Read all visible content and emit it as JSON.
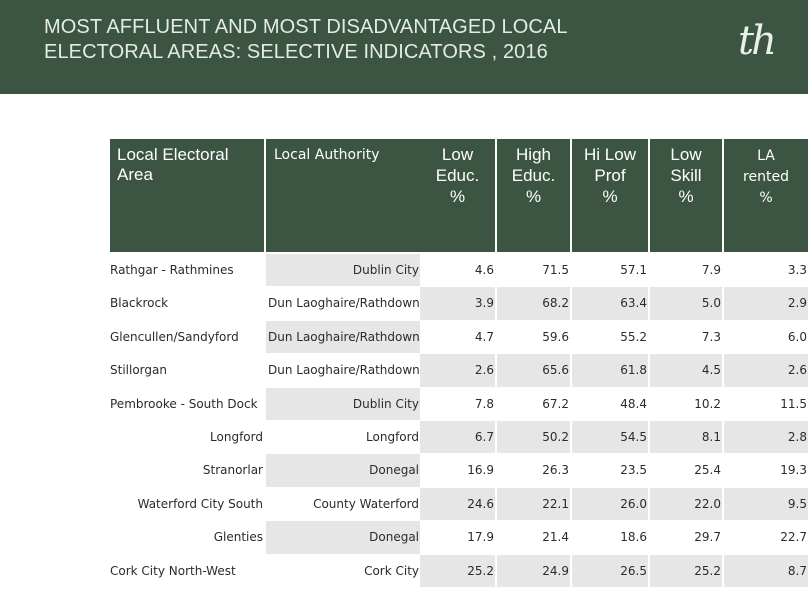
{
  "header": {
    "title_line1": "MOST AFFLUENT AND MOST DISADVANTAGED LOCAL",
    "title_line2": "ELECTORAL AREAS: SELECTIVE INDICATORS , 2016",
    "logo": "th"
  },
  "table": {
    "columns": [
      "Local Electoral\nArea",
      "Local Authority",
      "Low\nEduc.\n%",
      "High\nEduc.\n%",
      "Hi Low\nProf\n%",
      "Low\nSkill\n%",
      "LA\nrented\n%"
    ],
    "rows": [
      {
        "area": "Rathgar - Rathmines",
        "authority": "Dublin City",
        "values": [
          "4.6",
          "71.5",
          "57.1",
          "7.9",
          "3.3"
        ]
      },
      {
        "area": "Blackrock",
        "authority": "Dun Laoghaire/Rathdown",
        "values": [
          "3.9",
          "68.2",
          "63.4",
          "5.0",
          "2.9"
        ]
      },
      {
        "area": "Glencullen/Sandyford",
        "authority": "Dun Laoghaire/Rathdown",
        "values": [
          "4.7",
          "59.6",
          "55.2",
          "7.3",
          "6.0"
        ]
      },
      {
        "area": "Stillorgan",
        "authority": "Dun Laoghaire/Rathdown",
        "values": [
          "2.6",
          "65.6",
          "61.8",
          "4.5",
          "2.6"
        ]
      },
      {
        "area": "Pembrooke - South Dock",
        "authority": "Dublin City",
        "values": [
          "7.8",
          "67.2",
          "48.4",
          "10.2",
          "11.5"
        ]
      },
      {
        "area": "Longford",
        "authority": "Longford",
        "values": [
          "6.7",
          "50.2",
          "54.5",
          "8.1",
          "2.8"
        ]
      },
      {
        "area": "Stranorlar",
        "authority": "Donegal",
        "values": [
          "16.9",
          "26.3",
          "23.5",
          "25.4",
          "19.3"
        ]
      },
      {
        "area": "Waterford City South",
        "authority": "County Waterford",
        "values": [
          "24.6",
          "22.1",
          "26.0",
          "22.0",
          "9.5"
        ]
      },
      {
        "area": "Glenties",
        "authority": "Donegal",
        "values": [
          "17.9",
          "21.4",
          "18.6",
          "29.7",
          "22.7"
        ]
      },
      {
        "area": "Cork City North-West",
        "authority": "Cork City",
        "values": [
          "25.2",
          "24.9",
          "26.5",
          "25.2",
          "8.7"
        ]
      }
    ]
  }
}
